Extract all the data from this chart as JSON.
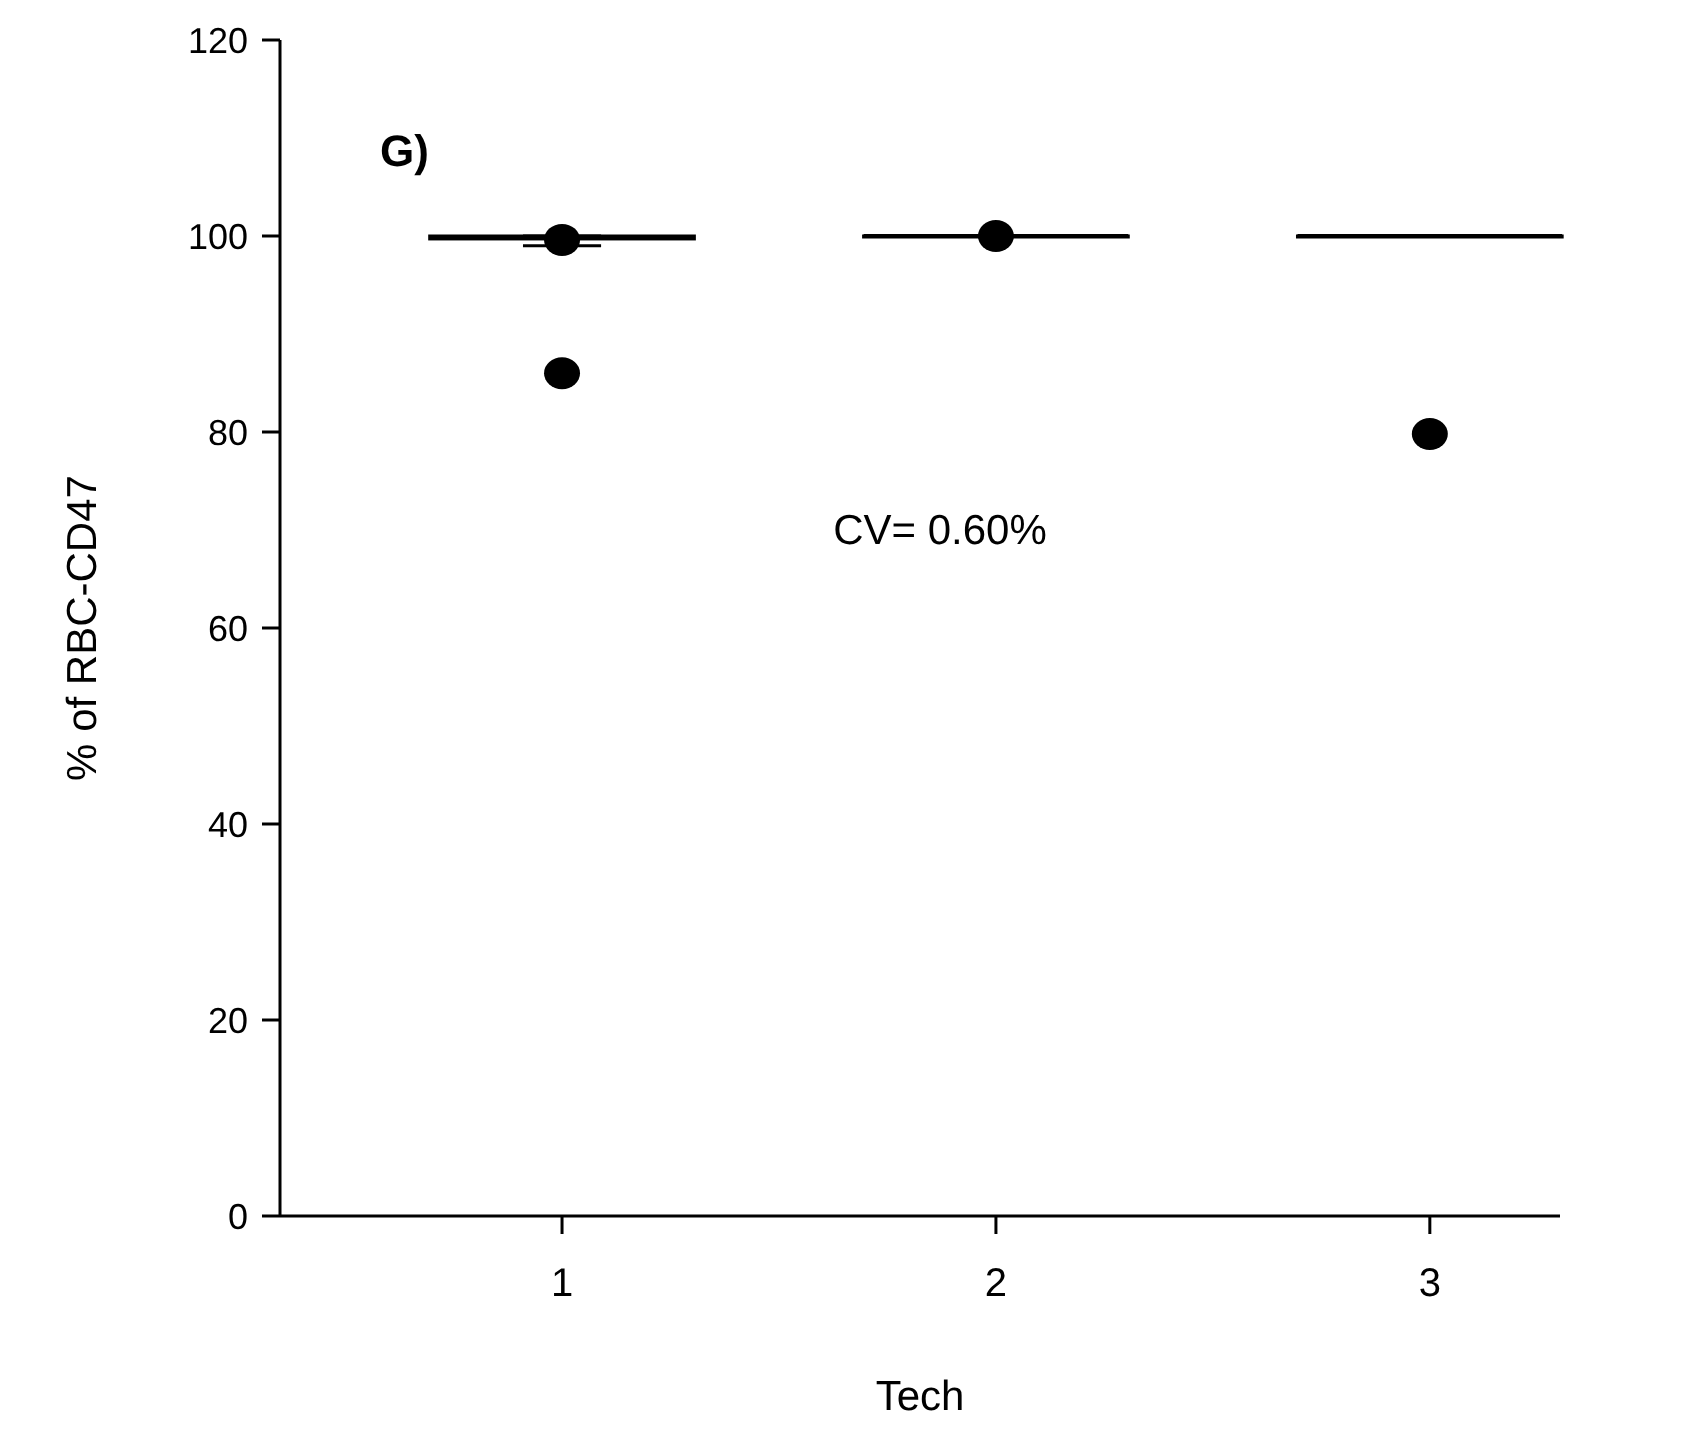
{
  "chart_data": {
    "type": "box",
    "title": "G)",
    "xlabel": "Tech",
    "ylabel": "% of RBC-CD47",
    "categories": [
      "1",
      "2",
      "3"
    ],
    "boxes": [
      {
        "low": 99,
        "q1": 99.7,
        "median": 99.8,
        "q3": 100,
        "high": 100,
        "outliers": [
          86,
          99.6
        ]
      },
      {
        "low": 100,
        "q1": 100,
        "median": 100,
        "q3": 100,
        "high": 100,
        "outliers": [
          100
        ]
      },
      {
        "low": 100,
        "q1": 100,
        "median": 100,
        "q3": 100,
        "high": 100,
        "outliers": [
          79.8
        ]
      }
    ],
    "ylim": [
      0,
      120
    ],
    "yticks": [
      0,
      20,
      40,
      60,
      80,
      100,
      120
    ],
    "annotations": [
      "CV= 0.60%"
    ],
    "grid": false
  }
}
